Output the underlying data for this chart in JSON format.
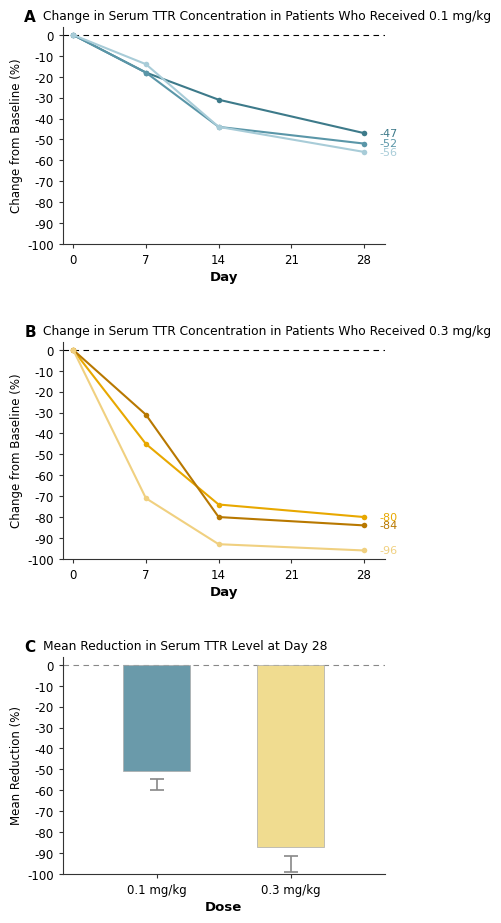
{
  "panel_A": {
    "title": "Change in Serum TTR Concentration in Patients Who Received 0.1 mg/kg",
    "label": "A",
    "days": [
      0,
      7,
      14,
      28
    ],
    "lines": [
      {
        "values": [
          0,
          -18,
          -31,
          -47
        ],
        "color": "#3d7a8a",
        "marker": "^",
        "label": "-47"
      },
      {
        "values": [
          0,
          -18,
          -44,
          -52
        ],
        "color": "#5a96a8",
        "marker": "s",
        "label": "-52"
      },
      {
        "values": [
          0,
          -14,
          -44,
          -56
        ],
        "color": "#a8ccd8",
        "marker": "o",
        "label": "-56"
      }
    ],
    "ylabel": "Change from Baseline (%)",
    "xlabel": "Day",
    "ylim": [
      -100,
      4
    ],
    "yticks": [
      0,
      -10,
      -20,
      -30,
      -40,
      -50,
      -60,
      -70,
      -80,
      -90,
      -100
    ],
    "xticks": [
      0,
      7,
      14,
      21,
      28
    ]
  },
  "panel_B": {
    "title": "Change in Serum TTR Concentration in Patients Who Received 0.3 mg/kg",
    "label": "B",
    "days": [
      0,
      7,
      14,
      28
    ],
    "lines": [
      {
        "values": [
          0,
          -45,
          -74,
          -80
        ],
        "color": "#e8a800",
        "label": "-80"
      },
      {
        "values": [
          0,
          -31,
          -80,
          -84
        ],
        "color": "#b87800",
        "label": "-84"
      },
      {
        "values": [
          0,
          -71,
          -93,
          -96
        ],
        "color": "#f0d080",
        "label": "-96"
      }
    ],
    "ylabel": "Change from Baseline (%)",
    "xlabel": "Day",
    "ylim": [
      -100,
      4
    ],
    "yticks": [
      0,
      -10,
      -20,
      -30,
      -40,
      -50,
      -60,
      -70,
      -80,
      -90,
      -100
    ],
    "xticks": [
      0,
      7,
      14,
      21,
      28
    ]
  },
  "panel_C": {
    "title": "Mean Reduction in Serum TTR Level at Day 28",
    "label": "C",
    "categories": [
      "0.1 mg/kg",
      "0.3 mg/kg"
    ],
    "bar_values": [
      -51,
      -87
    ],
    "bar_colors": [
      "#6a9aaa",
      "#f0dc90"
    ],
    "error_low": [
      7,
      9
    ],
    "error_high": [
      4,
      6
    ],
    "ylabel": "Mean Reduction (%)",
    "xlabel": "Dose",
    "ylim": [
      -100,
      4
    ],
    "yticks": [
      0,
      -10,
      -20,
      -30,
      -40,
      -50,
      -60,
      -70,
      -80,
      -90,
      -100
    ]
  },
  "bg_color": "#ffffff",
  "panel_bg": "#ffffff",
  "spine_color": "#333333",
  "tick_label_fontsize": 8.5,
  "axis_label_fontsize": 9.5,
  "title_fontsize": 8.8,
  "label_fontsize": 11
}
